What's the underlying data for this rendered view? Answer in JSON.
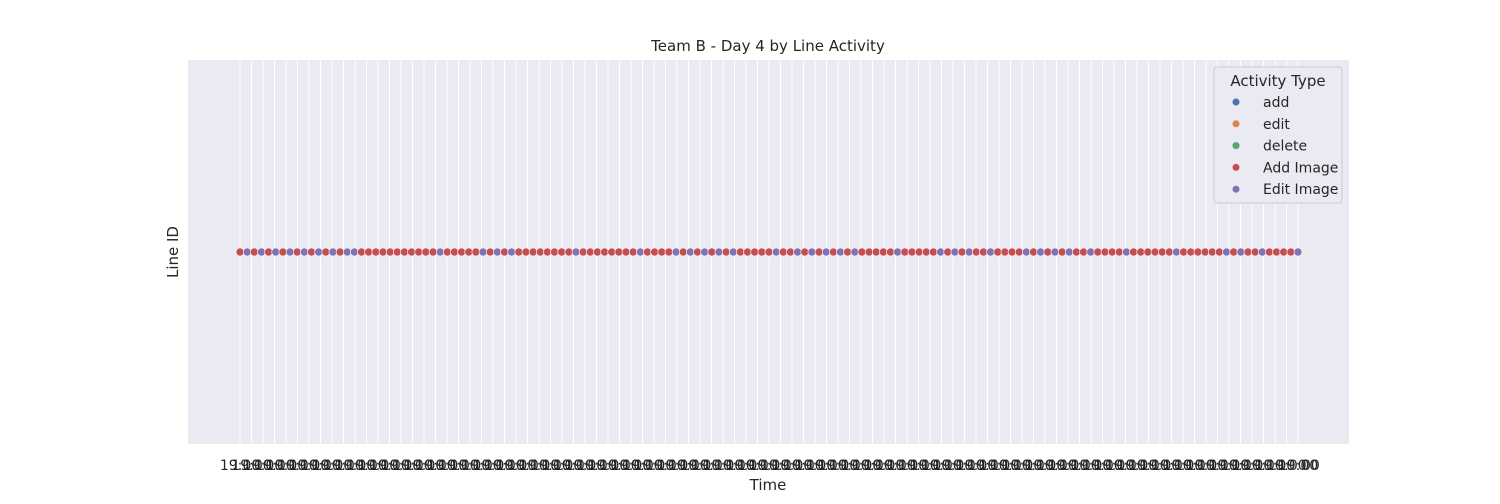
{
  "chart_data": {
    "type": "scatter",
    "title": "Team B - Day 4 by Line Activity",
    "xlabel": "Time",
    "ylabel": "Line ID",
    "x_tick_label_text": "19:00",
    "x_tick_count": 93,
    "end_tick_label": "00",
    "y_category": "",
    "legend": {
      "title": "Activity Type",
      "placement": "top-right",
      "entries": [
        {
          "name": "add",
          "color": "#4c72b0"
        },
        {
          "name": "edit",
          "color": "#dd8452"
        },
        {
          "name": "delete",
          "color": "#55a868"
        },
        {
          "name": "Add Image",
          "color": "#c44e52"
        },
        {
          "name": "Edit Image",
          "color": "#8172b3"
        }
      ]
    },
    "point_sequence": [
      "Add Image",
      "Edit Image",
      "Add Image",
      "Edit Image",
      "Add Image",
      "Edit Image",
      "Add Image",
      "Edit Image",
      "Add Image",
      "Edit Image",
      "Add Image",
      "Edit Image",
      "Add Image",
      "Edit Image",
      "Add Image",
      "Edit Image",
      "Edit Image",
      "Add Image",
      "Add Image",
      "Add Image",
      "Add Image",
      "Add Image",
      "Add Image",
      "Add Image",
      "Add Image",
      "Add Image",
      "Add Image",
      "Add Image",
      "Edit Image",
      "Add Image",
      "Add Image",
      "Add Image",
      "Add Image",
      "Add Image",
      "Edit Image",
      "Add Image",
      "Edit Image",
      "Add Image",
      "Edit Image",
      "Add Image",
      "Add Image",
      "Add Image",
      "Add Image",
      "Add Image",
      "Add Image",
      "Add Image",
      "Add Image",
      "Edit Image",
      "Add Image",
      "Add Image",
      "Add Image",
      "Add Image",
      "Add Image",
      "Add Image",
      "Add Image",
      "Add Image",
      "Edit Image",
      "Add Image",
      "Add Image",
      "Add Image",
      "Add Image",
      "Edit Image",
      "Add Image",
      "Edit Image",
      "Add Image",
      "Edit Image",
      "Add Image",
      "Edit Image",
      "Add Image",
      "Edit Image",
      "Add Image",
      "Add Image",
      "Add Image",
      "Add Image",
      "Add Image",
      "Edit Image",
      "Add Image",
      "Add Image",
      "Edit Image",
      "Add Image",
      "Edit Image",
      "Add Image",
      "Edit Image",
      "Add Image",
      "Edit Image",
      "Add Image",
      "Edit Image",
      "Add Image",
      "Add Image",
      "Add Image",
      "Add Image",
      "Add Image",
      "Edit Image",
      "Add Image",
      "Add Image",
      "Add Image",
      "Add Image",
      "Add Image",
      "Edit Image",
      "Add Image",
      "Edit Image",
      "Add Image",
      "Edit Image",
      "Add Image",
      "Add Image",
      "Edit Image",
      "Add Image",
      "Add Image",
      "Add Image",
      "Add Image",
      "Edit Image",
      "Add Image",
      "Edit Image",
      "Add Image",
      "Edit Image",
      "Add Image",
      "Edit Image",
      "Add Image",
      "Add Image",
      "Edit Image",
      "Add Image",
      "Add Image",
      "Add Image",
      "Add Image",
      "Edit Image",
      "Add Image",
      "Add Image",
      "Add Image",
      "Add Image",
      "Add Image",
      "Add Image",
      "Edit Image",
      "Add Image",
      "Add Image",
      "Add Image",
      "Add Image",
      "Add Image",
      "Add Image",
      "Edit Image",
      "Add Image",
      "Edit Image",
      "Add Image",
      "Add Image",
      "Edit Image",
      "Add Image",
      "Add Image",
      "Add Image",
      "Add Image",
      "Edit Image"
    ]
  }
}
